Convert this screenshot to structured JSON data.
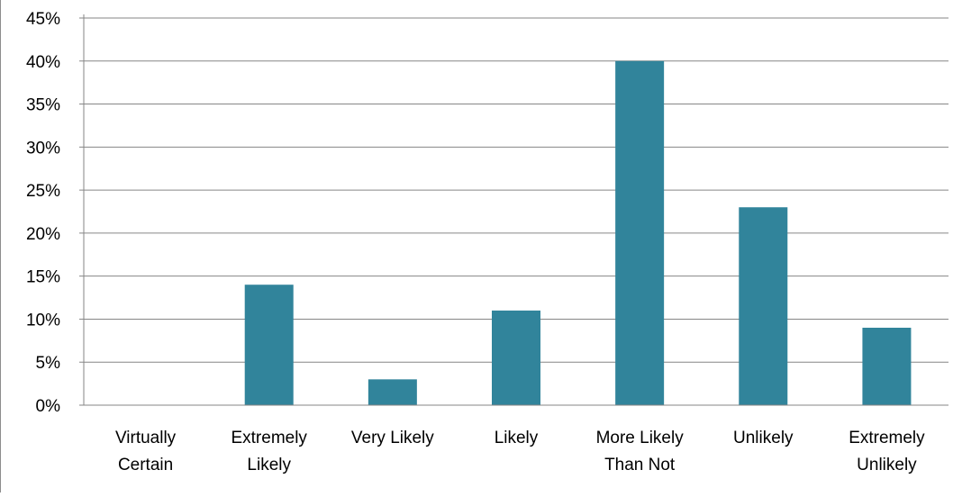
{
  "colors": {
    "bar": "#31849b",
    "gridline": "#868686",
    "axis": "#868686",
    "text": "#000000",
    "background": "#ffffff"
  },
  "chart_data": {
    "type": "bar",
    "title": "",
    "xlabel": "",
    "ylabel": "",
    "categories": [
      [
        "Virtually",
        "Certain"
      ],
      [
        "Extremely",
        "Likely"
      ],
      [
        "Very Likely"
      ],
      [
        "Likely"
      ],
      [
        "More Likely",
        "Than Not"
      ],
      [
        "Unlikely"
      ],
      [
        "Extremely",
        "Unlikely"
      ]
    ],
    "values": [
      0,
      14,
      3,
      11,
      40,
      23,
      9
    ],
    "value_unit": "%",
    "ylim": [
      0,
      45
    ],
    "yticks": [
      0,
      5,
      10,
      15,
      20,
      25,
      30,
      35,
      40,
      45
    ],
    "ytick_labels": [
      "0%",
      "5%",
      "10%",
      "15%",
      "20%",
      "25%",
      "30%",
      "35%",
      "40%",
      "45%"
    ],
    "grid": true,
    "legend": "none"
  }
}
